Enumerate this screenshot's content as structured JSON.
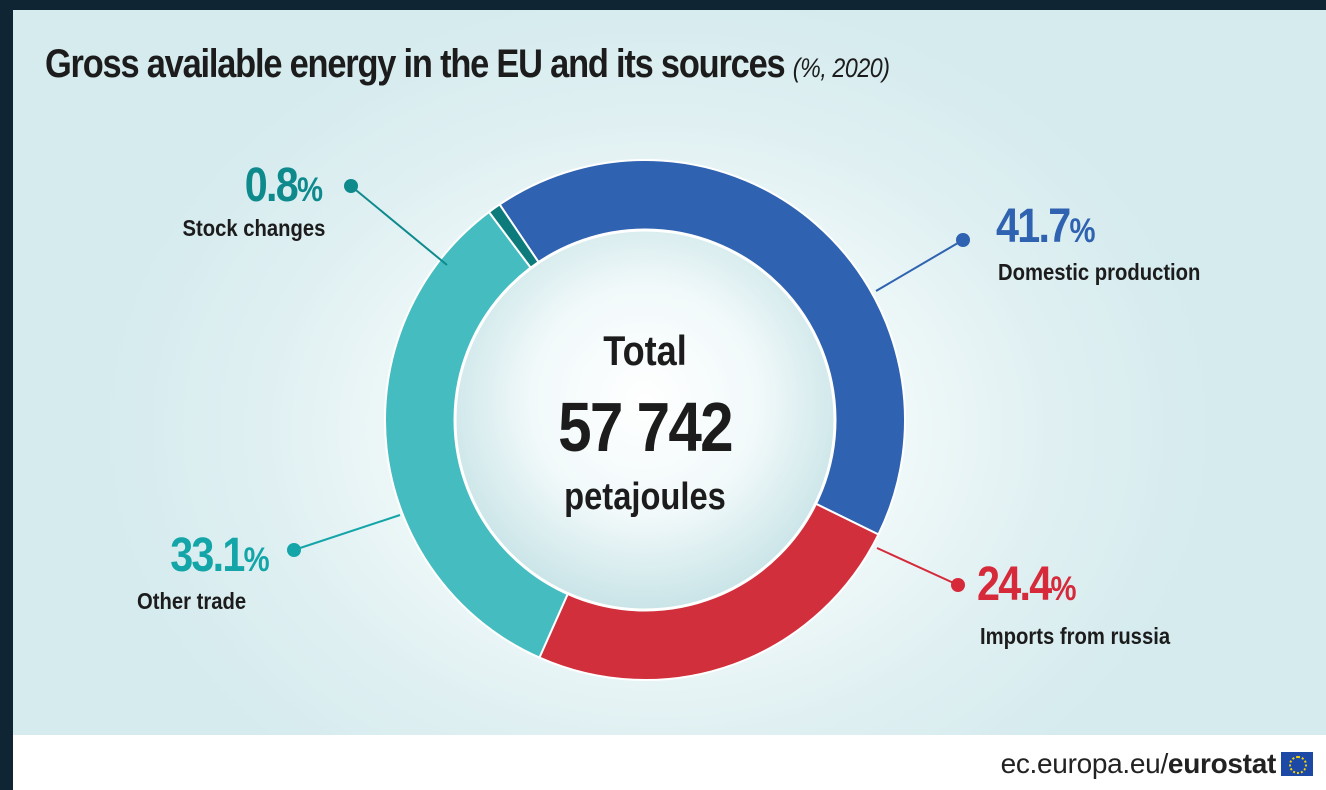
{
  "title": "Gross available energy in the EU and its sources",
  "subtitle": "(%, 2020)",
  "chart_data": {
    "type": "pie",
    "variant": "donut",
    "unit": "%",
    "slices": [
      {
        "label": "Domestic production",
        "value": 41.7,
        "value_text": "41.7",
        "color": "#2f62b0"
      },
      {
        "label": "Imports from russia",
        "value": 24.4,
        "value_text": "24.4",
        "color": "#d22f3c"
      },
      {
        "label": "Other trade",
        "value": 33.1,
        "value_text": "33.1",
        "color": "#45bcc0"
      },
      {
        "label": "Stock changes",
        "value": 0.8,
        "value_text": "0.8",
        "color": "#0d7b7b"
      }
    ],
    "center": {
      "line1": "Total",
      "line2": "57 742",
      "line3": "petajoules"
    }
  },
  "source": {
    "prefix": "ec.europa.eu/",
    "brand": "eurostat"
  },
  "colors": {
    "domestic": "#2f62b0",
    "imports_ru": "#d22f3c",
    "other_trade": "#45bcc0",
    "stock": "#0d7b7b",
    "domestic_text": "#2f62b0",
    "imports_text": "#d6293a",
    "other_text": "#13a5a8",
    "stock_text": "#0e8a8d"
  },
  "icons": [
    "eu-flag-icon"
  ]
}
